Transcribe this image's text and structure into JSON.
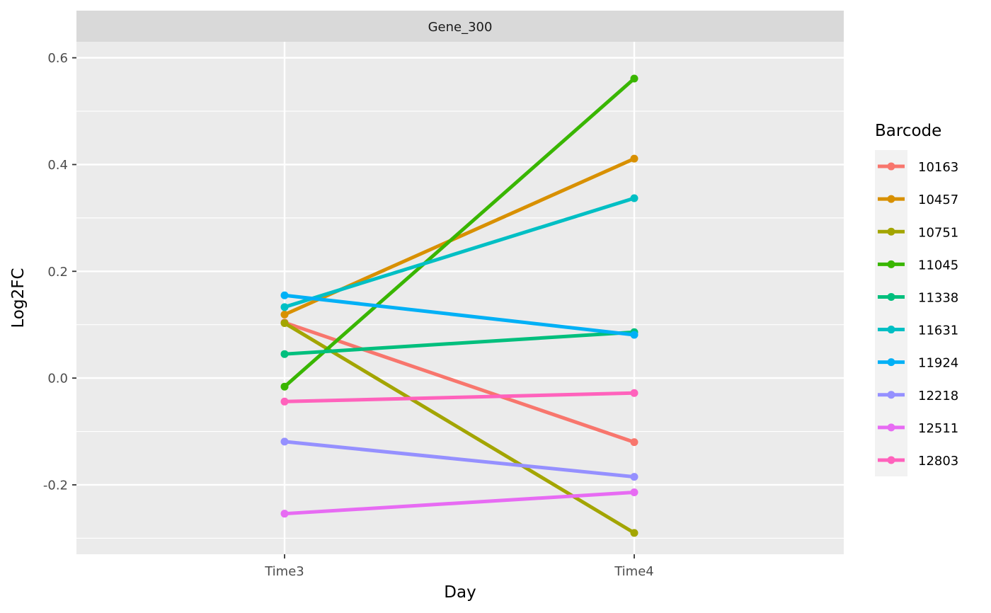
{
  "chart_data": {
    "type": "line",
    "facet_label": "Gene_300",
    "xlabel": "Day",
    "ylabel": "Log2FC",
    "categories": [
      "Time3",
      "Time4"
    ],
    "ylim": [
      -0.33,
      0.63
    ],
    "yticks": [
      -0.2,
      0.0,
      0.2,
      0.4,
      0.6
    ],
    "ytick_labels": [
      "-0.2",
      "0.0",
      "0.2",
      "0.4",
      "0.6"
    ],
    "grid": true,
    "legend": {
      "title": "Barcode",
      "position": "right"
    },
    "series": [
      {
        "name": "10163",
        "color": "#F8766D",
        "values": [
          0.104,
          -0.12
        ]
      },
      {
        "name": "10457",
        "color": "#D89000",
        "values": [
          0.119,
          0.411
        ]
      },
      {
        "name": "10751",
        "color": "#A3A500",
        "values": [
          0.103,
          -0.29
        ]
      },
      {
        "name": "11045",
        "color": "#39B600",
        "values": [
          -0.016,
          0.561
        ]
      },
      {
        "name": "11338",
        "color": "#00BF7D",
        "values": [
          0.045,
          0.086
        ]
      },
      {
        "name": "11631",
        "color": "#00BFC4",
        "values": [
          0.133,
          0.337
        ]
      },
      {
        "name": "11924",
        "color": "#00B0F6",
        "values": [
          0.155,
          0.081
        ]
      },
      {
        "name": "12218",
        "color": "#9590FF",
        "values": [
          -0.119,
          -0.185
        ]
      },
      {
        "name": "12511",
        "color": "#E76BF3",
        "values": [
          -0.254,
          -0.214
        ]
      },
      {
        "name": "12803",
        "color": "#FF62BC",
        "values": [
          -0.044,
          -0.028
        ]
      }
    ]
  }
}
